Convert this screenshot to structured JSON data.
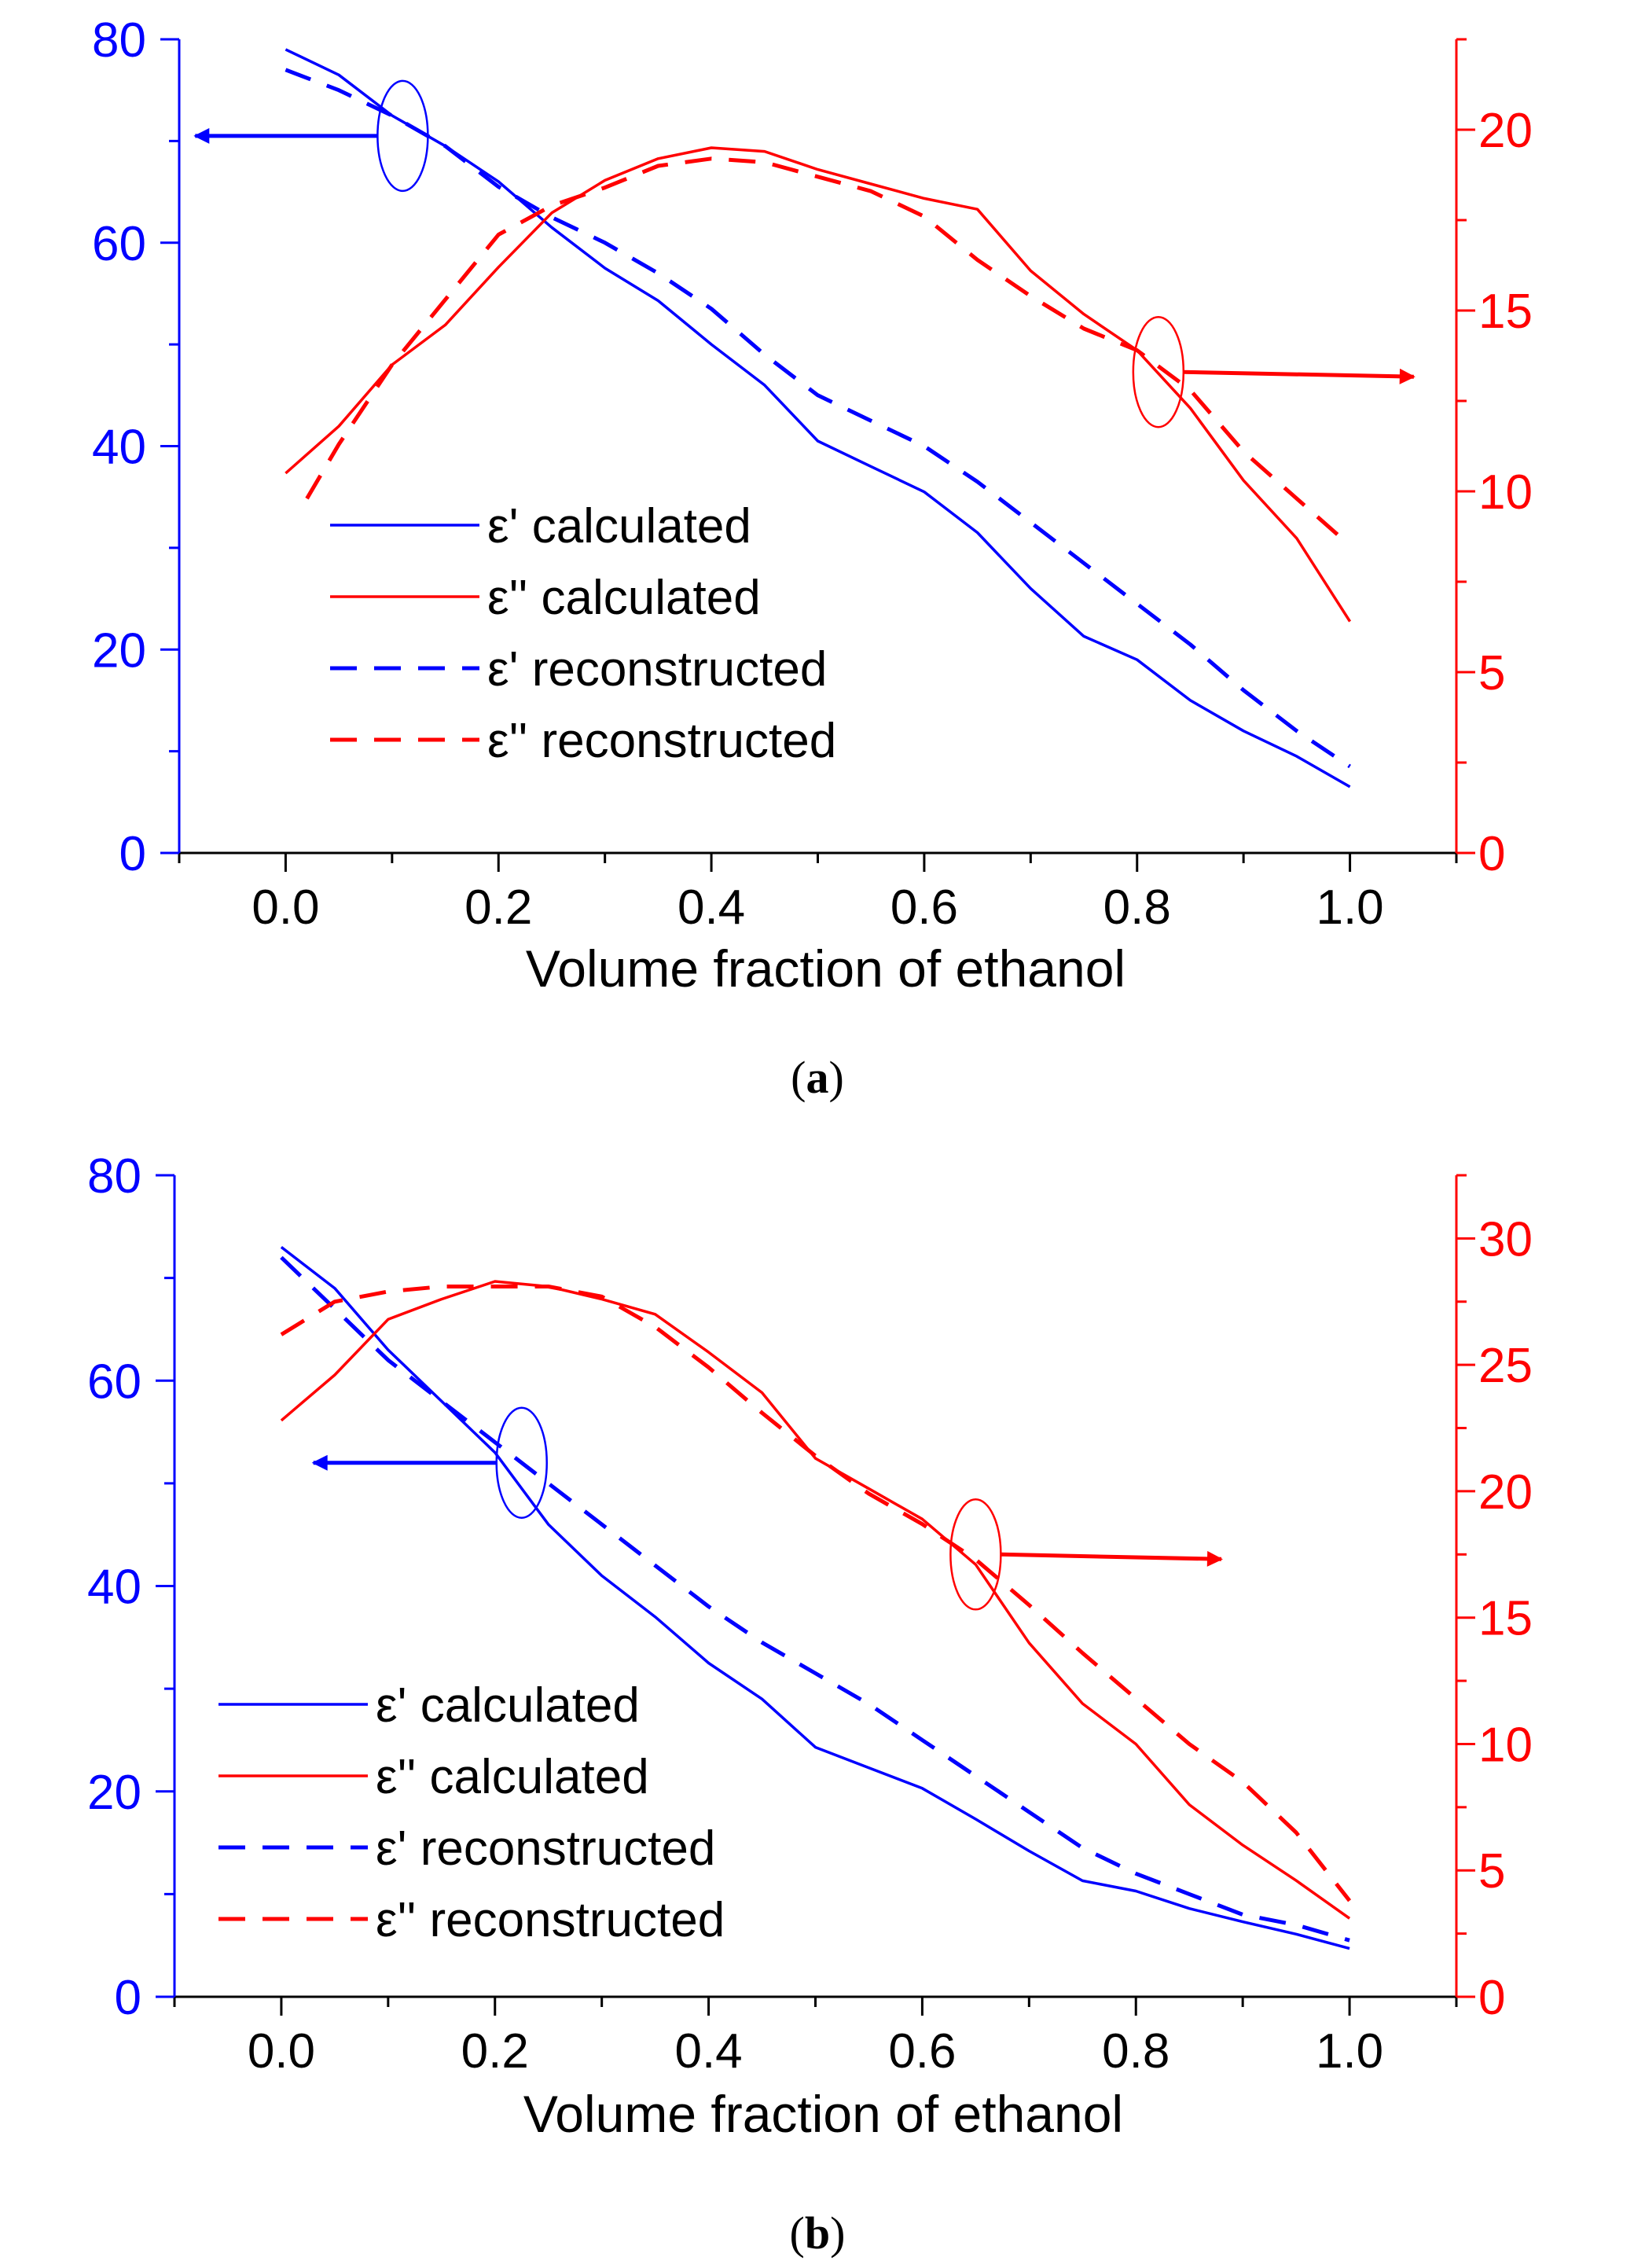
{
  "chart_data": [
    {
      "type": "line",
      "panel_label": "a",
      "caption_open": "(",
      "caption_close": ")",
      "xlabel": "Volume fraction of ethanol",
      "x_ticks": [
        "0.0",
        "0.2",
        "0.4",
        "0.6",
        "0.8",
        "1.0"
      ],
      "xlim": [
        -0.1,
        1.1
      ],
      "left_axis": {
        "label": "",
        "color": "#0000ff",
        "ylim": [
          0,
          80
        ],
        "ticks": [
          "0",
          "20",
          "40",
          "60",
          "80"
        ]
      },
      "right_axis": {
        "label": "",
        "color": "#ff0000",
        "ylim": [
          0,
          22.5
        ],
        "ticks": [
          "0",
          "5",
          "10",
          "15",
          "20"
        ]
      },
      "legend": [
        "ε' calculated",
        "ε'' calculated",
        "ε' reconstructed",
        "ε'' reconstructed"
      ],
      "legend_position": "lower-left",
      "series": [
        {
          "name": "ε' calculated",
          "axis": "left",
          "style": "solid",
          "color": "#0000ff",
          "x": [
            0,
            0.05,
            0.1,
            0.15,
            0.2,
            0.25,
            0.3,
            0.35,
            0.4,
            0.45,
            0.5,
            0.55,
            0.6,
            0.65,
            0.7,
            0.75,
            0.8,
            0.85,
            0.9,
            0.95,
            1.0
          ],
          "y": [
            79,
            76.5,
            72.5,
            69.5,
            66,
            61.5,
            57.5,
            54.3,
            50,
            46,
            40.5,
            38,
            35.5,
            31.5,
            26,
            21.3,
            19,
            15,
            12,
            9.5,
            6.5
          ]
        },
        {
          "name": "ε'' calculated",
          "axis": "right",
          "style": "solid",
          "color": "#ff0000",
          "x": [
            0,
            0.05,
            0.1,
            0.15,
            0.2,
            0.25,
            0.3,
            0.35,
            0.4,
            0.45,
            0.5,
            0.55,
            0.6,
            0.65,
            0.7,
            0.75,
            0.8,
            0.85,
            0.9,
            0.95,
            1.0
          ],
          "y": [
            10.5,
            11.8,
            13.5,
            14.6,
            16.2,
            17.7,
            18.6,
            19.2,
            19.5,
            19.4,
            18.9,
            18.5,
            18.1,
            17.8,
            16.1,
            14.9,
            13.9,
            12.3,
            10.3,
            8.7,
            6.4
          ]
        },
        {
          "name": "ε' reconstructed",
          "axis": "left",
          "style": "dashed",
          "color": "#0000ff",
          "x": [
            0,
            0.05,
            0.1,
            0.15,
            0.2,
            0.25,
            0.3,
            0.35,
            0.4,
            0.45,
            0.5,
            0.55,
            0.6,
            0.65,
            0.7,
            0.75,
            0.8,
            0.85,
            0.9,
            0.95,
            1.0
          ],
          "y": [
            77,
            75,
            72.5,
            69.5,
            65.5,
            62.5,
            60,
            57,
            53.5,
            49,
            45,
            42.5,
            40,
            36.5,
            32.5,
            28.5,
            24.5,
            20.5,
            16,
            12,
            8.5
          ]
        },
        {
          "name": "ε'' reconstructed",
          "axis": "right",
          "style": "dashed",
          "color": "#ff0000",
          "x": [
            0.02,
            0.05,
            0.1,
            0.15,
            0.2,
            0.25,
            0.3,
            0.35,
            0.4,
            0.45,
            0.5,
            0.55,
            0.6,
            0.65,
            0.7,
            0.75,
            0.8,
            0.85,
            0.9,
            0.95,
            1.0
          ],
          "y": [
            9.8,
            11.3,
            13.5,
            15.3,
            17.1,
            17.9,
            18.4,
            19.0,
            19.2,
            19.1,
            18.7,
            18.3,
            17.6,
            16.4,
            15.4,
            14.5,
            13.9,
            12.8,
            11.1,
            9.8,
            8.5
          ]
        }
      ],
      "annotations": [
        {
          "type": "ellipse-arrow",
          "axis": "left",
          "target": "ε' curves",
          "at_x": 0.11,
          "at_y": 70.5,
          "arrow_to_x": -0.085,
          "direction": "left",
          "color": "#0000ff"
        },
        {
          "type": "ellipse-arrow",
          "axis": "right",
          "target": "ε'' curves",
          "at_x": 0.82,
          "at_y": 13.3,
          "arrow_to_x": 1.06,
          "direction": "right",
          "color": "#ff0000"
        }
      ]
    },
    {
      "type": "line",
      "panel_label": "b",
      "caption_open": "(",
      "caption_close": ")",
      "xlabel": "Volume fraction of ethanol",
      "x_ticks": [
        "0.0",
        "0.2",
        "0.4",
        "0.6",
        "0.8",
        "1.0"
      ],
      "xlim": [
        -0.1,
        1.1
      ],
      "left_axis": {
        "label": "",
        "color": "#0000ff",
        "ylim": [
          0,
          80
        ],
        "ticks": [
          "0",
          "20",
          "40",
          "60",
          "80"
        ]
      },
      "right_axis": {
        "label": "",
        "color": "#ff0000",
        "ylim": [
          0,
          32.5
        ],
        "ticks": [
          "0",
          "5",
          "10",
          "15",
          "20",
          "25",
          "30"
        ]
      },
      "legend": [
        "ε' calculated",
        "ε'' calculated",
        "ε' reconstructed",
        "ε'' reconstructed"
      ],
      "legend_position": "lower-left",
      "series": [
        {
          "name": "ε' calculated",
          "axis": "left",
          "style": "solid",
          "color": "#0000ff",
          "x": [
            0,
            0.05,
            0.1,
            0.15,
            0.2,
            0.25,
            0.3,
            0.35,
            0.4,
            0.45,
            0.5,
            0.55,
            0.6,
            0.65,
            0.7,
            0.75,
            0.8,
            0.85,
            0.9,
            0.95,
            1.0
          ],
          "y": [
            73,
            69,
            63,
            58,
            53,
            46,
            41,
            37,
            32.5,
            29,
            24.3,
            22.3,
            20.3,
            17.3,
            14.2,
            11.3,
            10.3,
            8.6,
            7.3,
            6.1,
            4.7
          ]
        },
        {
          "name": "ε'' calculated",
          "axis": "right",
          "style": "solid",
          "color": "#ff0000",
          "x": [
            0,
            0.05,
            0.1,
            0.15,
            0.2,
            0.25,
            0.3,
            0.35,
            0.4,
            0.45,
            0.5,
            0.55,
            0.6,
            0.65,
            0.7,
            0.75,
            0.8,
            0.85,
            0.9,
            0.95,
            1.0
          ],
          "y": [
            22.8,
            24.6,
            26.8,
            27.6,
            28.3,
            28.1,
            27.6,
            27.0,
            25.5,
            23.9,
            21.3,
            20.1,
            18.9,
            17.1,
            14.0,
            11.6,
            10.0,
            7.6,
            6.0,
            4.6,
            3.1
          ]
        },
        {
          "name": "ε' reconstructed",
          "axis": "left",
          "style": "dashed",
          "color": "#0000ff",
          "x": [
            0,
            0.05,
            0.1,
            0.15,
            0.2,
            0.25,
            0.3,
            0.35,
            0.4,
            0.45,
            0.5,
            0.55,
            0.6,
            0.65,
            0.7,
            0.75,
            0.8,
            0.85,
            0.9,
            0.95,
            1.0
          ],
          "y": [
            72,
            67,
            62,
            58,
            54,
            50,
            46,
            42,
            38,
            34.5,
            31.5,
            28.5,
            25,
            21.5,
            18,
            14.5,
            12,
            10,
            8,
            7,
            5.5
          ]
        },
        {
          "name": "ε'' reconstructed",
          "axis": "right",
          "style": "dashed",
          "color": "#ff0000",
          "x": [
            0,
            0.05,
            0.1,
            0.15,
            0.2,
            0.25,
            0.3,
            0.35,
            0.4,
            0.45,
            0.5,
            0.55,
            0.6,
            0.65,
            0.7,
            0.75,
            0.8,
            0.85,
            0.9,
            0.95,
            1.0
          ],
          "y": [
            26.2,
            27.5,
            27.9,
            28.1,
            28.1,
            28.1,
            27.7,
            26.5,
            24.9,
            23.1,
            21.4,
            19.9,
            18.7,
            17.3,
            15.5,
            13.6,
            11.8,
            10.0,
            8.5,
            6.5,
            3.8
          ]
        }
      ],
      "annotations": [
        {
          "type": "ellipse-arrow",
          "axis": "left",
          "target": "ε' curves",
          "at_x": 0.225,
          "at_y": 52,
          "arrow_to_x": 0.03,
          "direction": "left",
          "color": "#0000ff"
        },
        {
          "type": "ellipse-arrow",
          "axis": "right",
          "target": "ε'' curves",
          "at_x": 0.65,
          "at_y": 17.5,
          "arrow_to_x": 0.88,
          "direction": "right",
          "color": "#ff0000"
        }
      ]
    }
  ]
}
